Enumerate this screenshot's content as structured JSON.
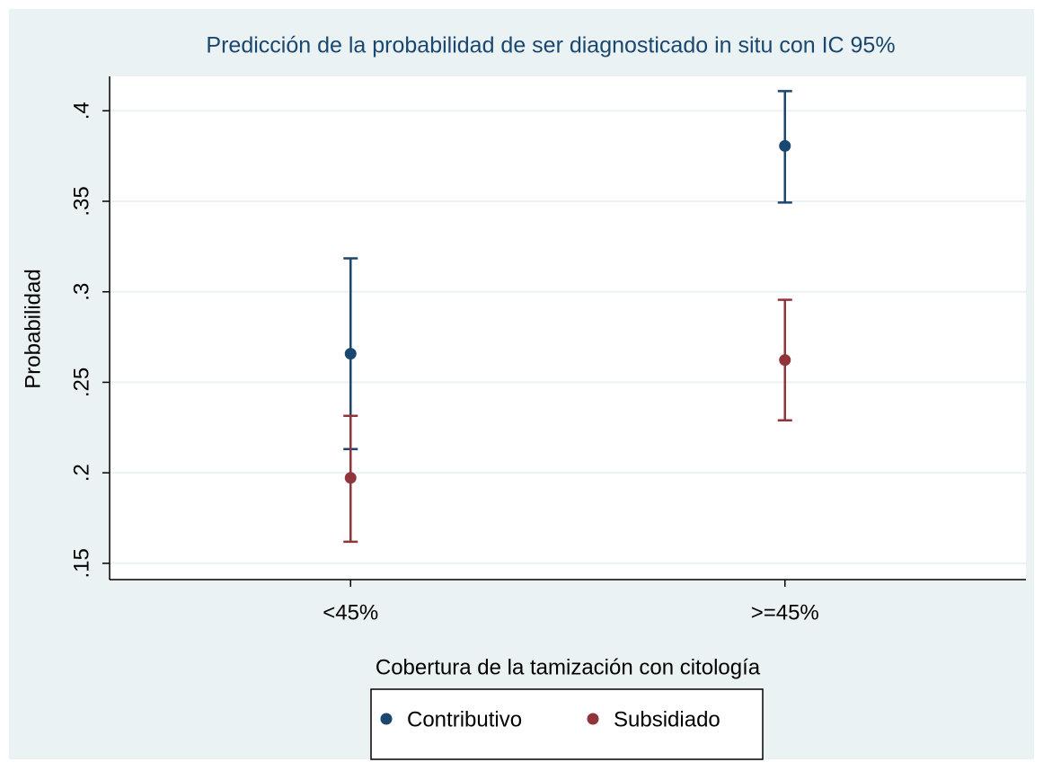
{
  "chart_data": {
    "type": "errorbar",
    "title": "Predicción de la probabilidad de ser diagnosticado in situ con IC 95%",
    "x_label": "Cobertura de la tamización con citología",
    "y_label": "Probabilidad",
    "categories": [
      "<45%",
      ">=45%"
    ],
    "series": [
      {
        "name": "Contributivo",
        "color": "#1a476f",
        "values": [
          0.2658,
          0.3806
        ],
        "lower": [
          0.2131,
          0.3493
        ],
        "upper": [
          0.3185,
          0.4109
        ]
      },
      {
        "name": "Subsidiado",
        "color": "#90353b",
        "values": [
          0.1972,
          0.2623
        ],
        "lower": [
          0.1619,
          0.229
        ],
        "upper": [
          0.2315,
          0.2956
        ]
      }
    ],
    "ylim": [
      0.141,
      0.419
    ],
    "yticks": [
      {
        "value": 0.15,
        "label": ".15"
      },
      {
        "value": 0.2,
        "label": ".2"
      },
      {
        "value": 0.25,
        "label": ".25"
      },
      {
        "value": 0.3,
        "label": ".3"
      },
      {
        "value": 0.35,
        "label": ".35"
      },
      {
        "value": 0.4,
        "label": ".4"
      }
    ],
    "grid": true,
    "legend_position": "bottom"
  }
}
